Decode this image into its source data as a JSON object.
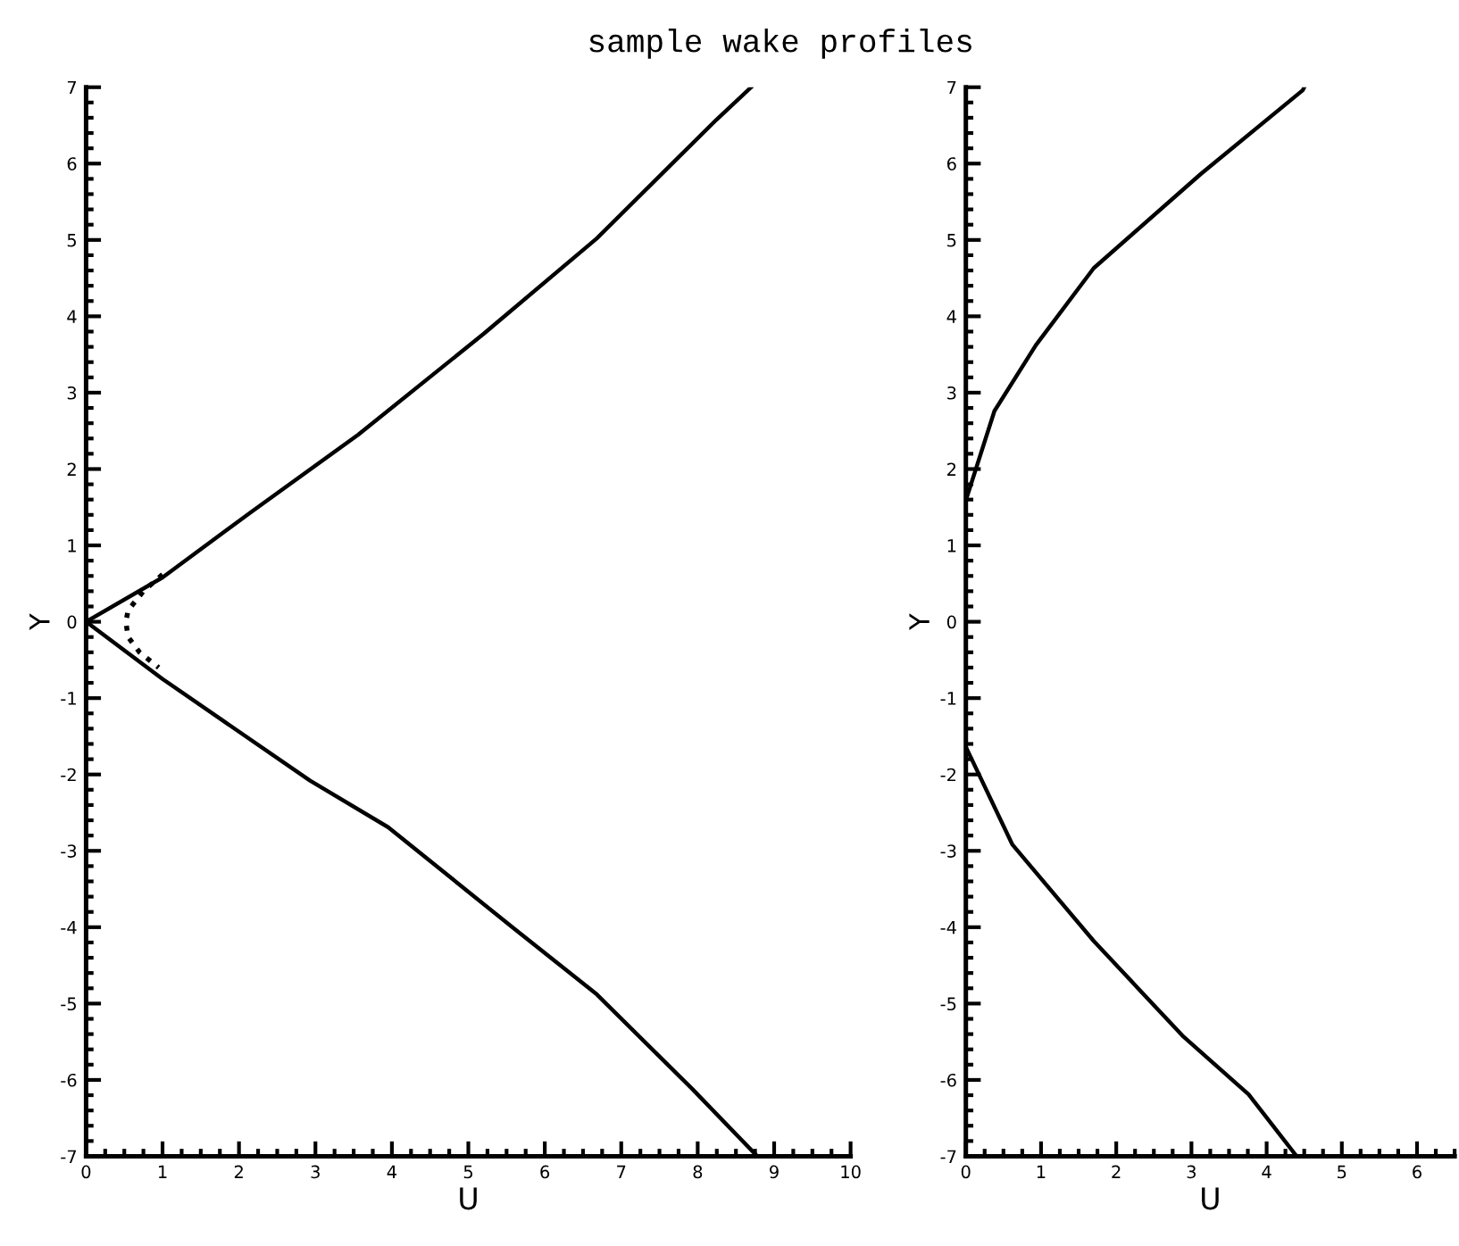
{
  "chart_data": [
    {
      "type": "line",
      "title": "sample wake profiles",
      "xlabel": "U",
      "ylabel": "Y",
      "xlim": [
        0,
        10
      ],
      "ylim": [
        -7,
        7
      ],
      "xticks": [
        0,
        1,
        2,
        3,
        4,
        5,
        6,
        7,
        8,
        9,
        10
      ],
      "yticks": [
        -7,
        -6,
        -5,
        -4,
        -3,
        -2,
        -1,
        0,
        1,
        2,
        3,
        4,
        5,
        6,
        7
      ],
      "series": [
        {
          "color": "#000000",
          "line_style": "solid",
          "x": [
            8.7,
            8.24,
            6.68,
            5.2,
            3.56,
            2.15,
            1.0,
            0,
            1.0,
            2.93,
            3.95,
            5.6,
            6.68,
            7.93,
            8.78
          ],
          "values": [
            7,
            6.57,
            5.02,
            3.77,
            2.45,
            1.43,
            0.58,
            0,
            -0.75,
            -2.08,
            -2.69,
            -4.02,
            -4.88,
            -6.12,
            -7
          ]
        },
        {
          "color": "#000000",
          "line_style": "dotted",
          "x": [
            1.0,
            0.75,
            0.55,
            0.52,
            0.55,
            0.7,
            0.95
          ],
          "values": [
            0.62,
            0.4,
            0.15,
            0,
            -0.2,
            -0.4,
            -0.6
          ]
        }
      ]
    },
    {
      "type": "line",
      "xlabel": "U",
      "ylabel": "Y",
      "xlim": [
        0,
        6.5
      ],
      "ylim": [
        -7,
        7
      ],
      "xticks": [
        0,
        1,
        2,
        3,
        4,
        5,
        6
      ],
      "yticks": [
        -7,
        -6,
        -5,
        -4,
        -3,
        -2,
        -1,
        0,
        1,
        2,
        3,
        4,
        5,
        6,
        7
      ],
      "series": [
        {
          "color": "#000000",
          "line_style": "solid",
          "x": [
            4.5,
            4.48,
            3.12,
            1.7,
            0.93,
            0.38,
            0,
            0,
            0.62,
            1.7,
            2.88,
            3.76,
            4.4
          ],
          "values": [
            7,
            6.96,
            5.86,
            4.63,
            3.62,
            2.76,
            1.59,
            -1.64,
            -2.92,
            -4.18,
            -5.42,
            -6.19,
            -7
          ]
        }
      ]
    }
  ]
}
